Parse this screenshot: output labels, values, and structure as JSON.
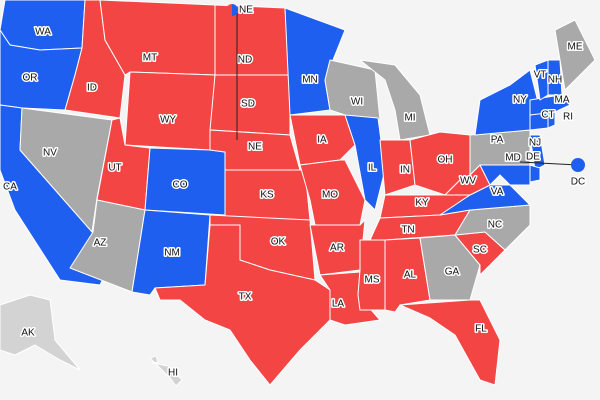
{
  "states": [
    {
      "label": "WA",
      "color": "#1f5ff0"
    },
    {
      "label": "OR",
      "color": "#1f5ff0"
    },
    {
      "label": "CA",
      "color": "#1f5ff0"
    },
    {
      "label": "NV",
      "color": "#a9a9a9"
    },
    {
      "label": "ID",
      "color": "#f44545"
    },
    {
      "label": "MT",
      "color": "#f44545"
    },
    {
      "label": "WY",
      "color": "#f44545"
    },
    {
      "label": "UT",
      "color": "#f44545"
    },
    {
      "label": "CO",
      "color": "#1f5ff0"
    },
    {
      "label": "AZ",
      "color": "#a9a9a9"
    },
    {
      "label": "NM",
      "color": "#1f5ff0"
    },
    {
      "label": "ND",
      "color": "#f44545"
    },
    {
      "label": "SD",
      "color": "#f44545"
    },
    {
      "label": "NE",
      "color": "#f44545"
    },
    {
      "label": "KS",
      "color": "#f44545"
    },
    {
      "label": "OK",
      "color": "#f44545"
    },
    {
      "label": "TX",
      "color": "#f44545"
    },
    {
      "label": "MN",
      "color": "#1f5ff0"
    },
    {
      "label": "IA",
      "color": "#f44545"
    },
    {
      "label": "MO",
      "color": "#f44545"
    },
    {
      "label": "AR",
      "color": "#f44545"
    },
    {
      "label": "LA",
      "color": "#f44545"
    },
    {
      "label": "WI",
      "color": "#a9a9a9"
    },
    {
      "label": "IL",
      "color": "#1f5ff0"
    },
    {
      "label": "MI",
      "color": "#a9a9a9"
    },
    {
      "label": "IN",
      "color": "#f44545"
    },
    {
      "label": "OH",
      "color": "#f44545"
    },
    {
      "label": "KY",
      "color": "#f44545"
    },
    {
      "label": "TN",
      "color": "#f44545"
    },
    {
      "label": "MS",
      "color": "#f44545"
    },
    {
      "label": "AL",
      "color": "#f44545"
    },
    {
      "label": "GA",
      "color": "#a9a9a9"
    },
    {
      "label": "FL",
      "color": "#f44545"
    },
    {
      "label": "SC",
      "color": "#f44545"
    },
    {
      "label": "NC",
      "color": "#a9a9a9"
    },
    {
      "label": "VA",
      "color": "#1f5ff0"
    },
    {
      "label": "WV",
      "color": "#f44545"
    },
    {
      "label": "PA",
      "color": "#a9a9a9"
    },
    {
      "label": "NY",
      "color": "#1f5ff0"
    },
    {
      "label": "MD",
      "color": "#1f5ff0"
    },
    {
      "label": "NJ",
      "color": "#1f5ff0"
    },
    {
      "label": "DE",
      "color": "#1f5ff0"
    },
    {
      "label": "CT",
      "color": "#1f5ff0"
    },
    {
      "label": "RI",
      "color": "#1f5ff0"
    },
    {
      "label": "MA",
      "color": "#1f5ff0"
    },
    {
      "label": "VT",
      "color": "#1f5ff0"
    },
    {
      "label": "NH",
      "color": "#1f5ff0"
    },
    {
      "label": "ME",
      "color": "#a9a9a9"
    },
    {
      "label": "AK",
      "color": "#d3d3d3"
    },
    {
      "label": "HI",
      "color": "#d3d3d3"
    }
  ],
  "callouts": [
    {
      "label": "NE",
      "colors": [
        "#f44545",
        "#1f5ff0"
      ]
    },
    {
      "label": "DC",
      "colors": [
        "#1f5ff0"
      ]
    }
  ]
}
